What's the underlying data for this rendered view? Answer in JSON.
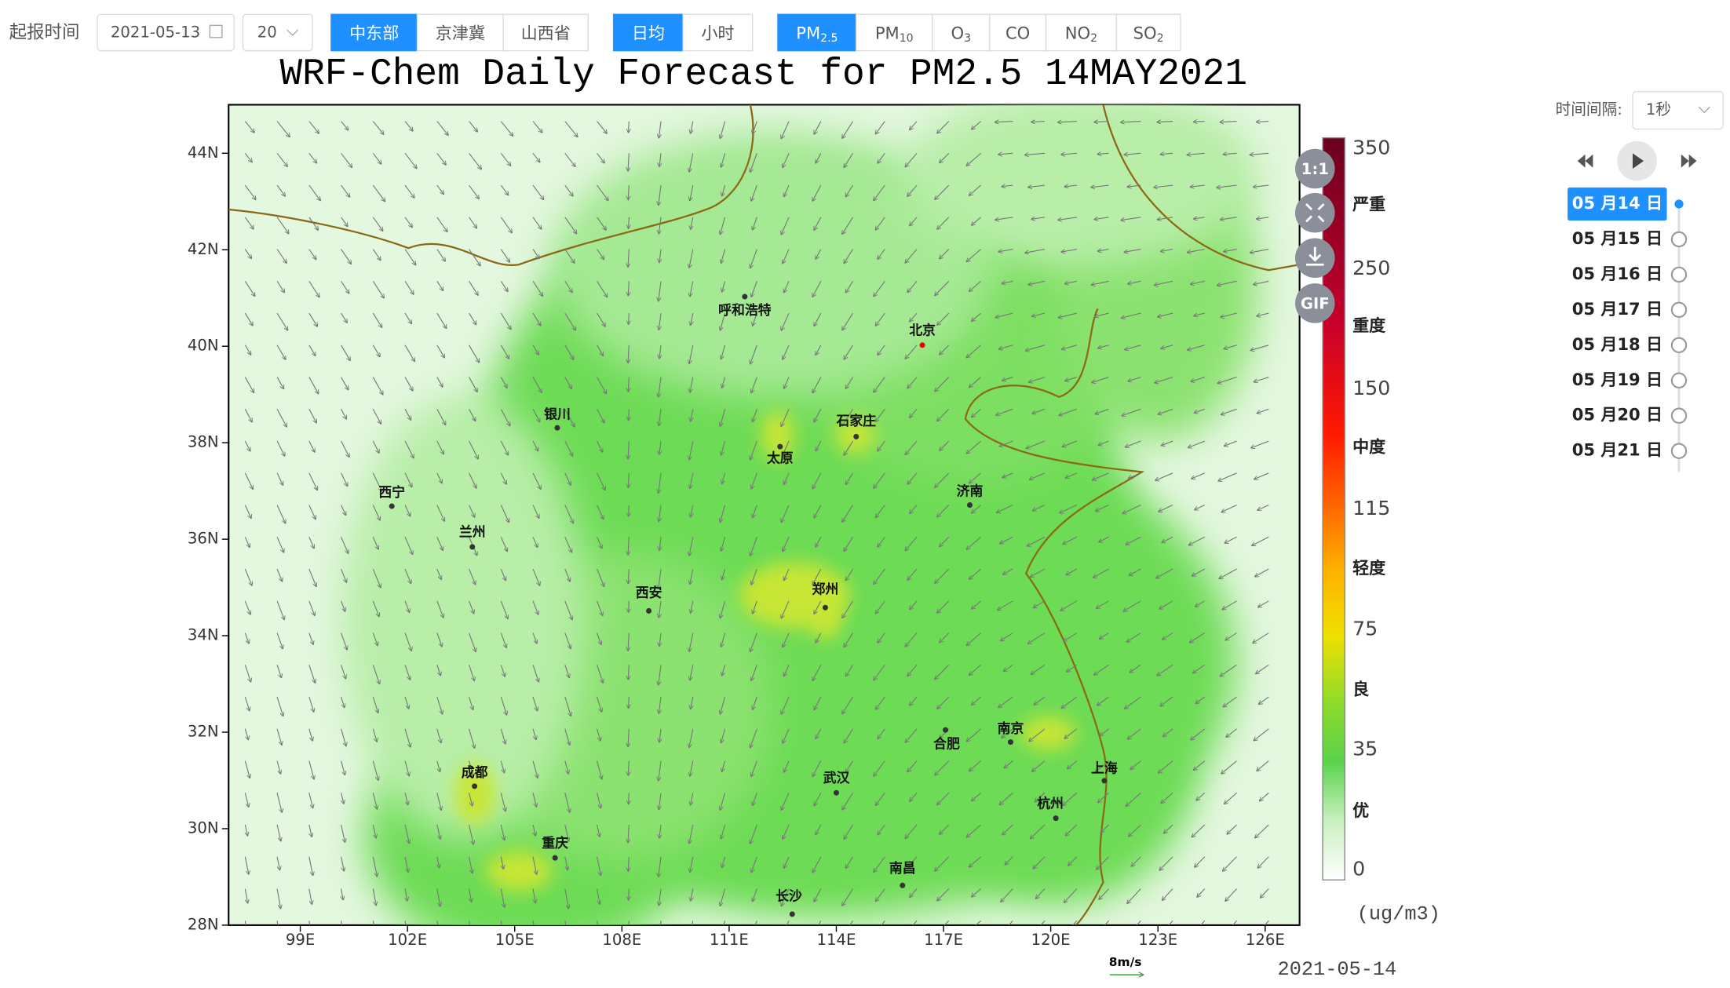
{
  "toolbar": {
    "label": "起报时间",
    "date": "2021-05-13",
    "hour": "20",
    "regions": [
      "中东部",
      "京津冀",
      "山西省"
    ],
    "modes": [
      "日均",
      "小时"
    ],
    "pollutants": [
      {
        "text": "PM",
        "sub": "2.5"
      },
      {
        "text": "PM",
        "sub": "10"
      },
      {
        "text": "O",
        "sub": "3"
      },
      {
        "text": "CO"
      },
      {
        "text": "NO",
        "sub": "2"
      },
      {
        "text": "SO",
        "sub": "2"
      }
    ]
  },
  "map": {
    "title": "WRF-Chem Daily Forecast for PM2.5 14MAY2021",
    "lat_labels": [
      "44N",
      "42N",
      "40N",
      "38N",
      "36N",
      "34N",
      "32N",
      "30N",
      "28N"
    ],
    "lon_labels": [
      "99E",
      "102E",
      "105E",
      "108E",
      "111E",
      "114E",
      "117E",
      "120E",
      "123E",
      "126E"
    ],
    "cities": [
      "呼和浩特",
      "北京",
      "银川",
      "石家庄",
      "太原",
      "西宁",
      "济南",
      "兰州",
      "西安",
      "郑州",
      "南京",
      "合肥",
      "上海",
      "成都",
      "武汉",
      "杭州",
      "重庆",
      "南昌",
      "长沙"
    ],
    "colorbar_ticks": [
      "350",
      "250",
      "150",
      "115",
      "75",
      "35",
      "0"
    ],
    "levels": [
      "严重",
      "重度",
      "中度",
      "轻度",
      "良",
      "优"
    ],
    "unit": "(ug/m3)",
    "vector_scale": "8m/s",
    "date": "2021-05-14",
    "tools": [
      "1:1",
      "GIF"
    ]
  },
  "player": {
    "interval_label": "时间间隔:",
    "interval": "1秒",
    "dates": [
      "05 月14 日",
      "05 月15 日",
      "05 月16 日",
      "05 月17 日",
      "05 月18 日",
      "05 月19 日",
      "05 月20 日",
      "05 月21 日"
    ]
  }
}
